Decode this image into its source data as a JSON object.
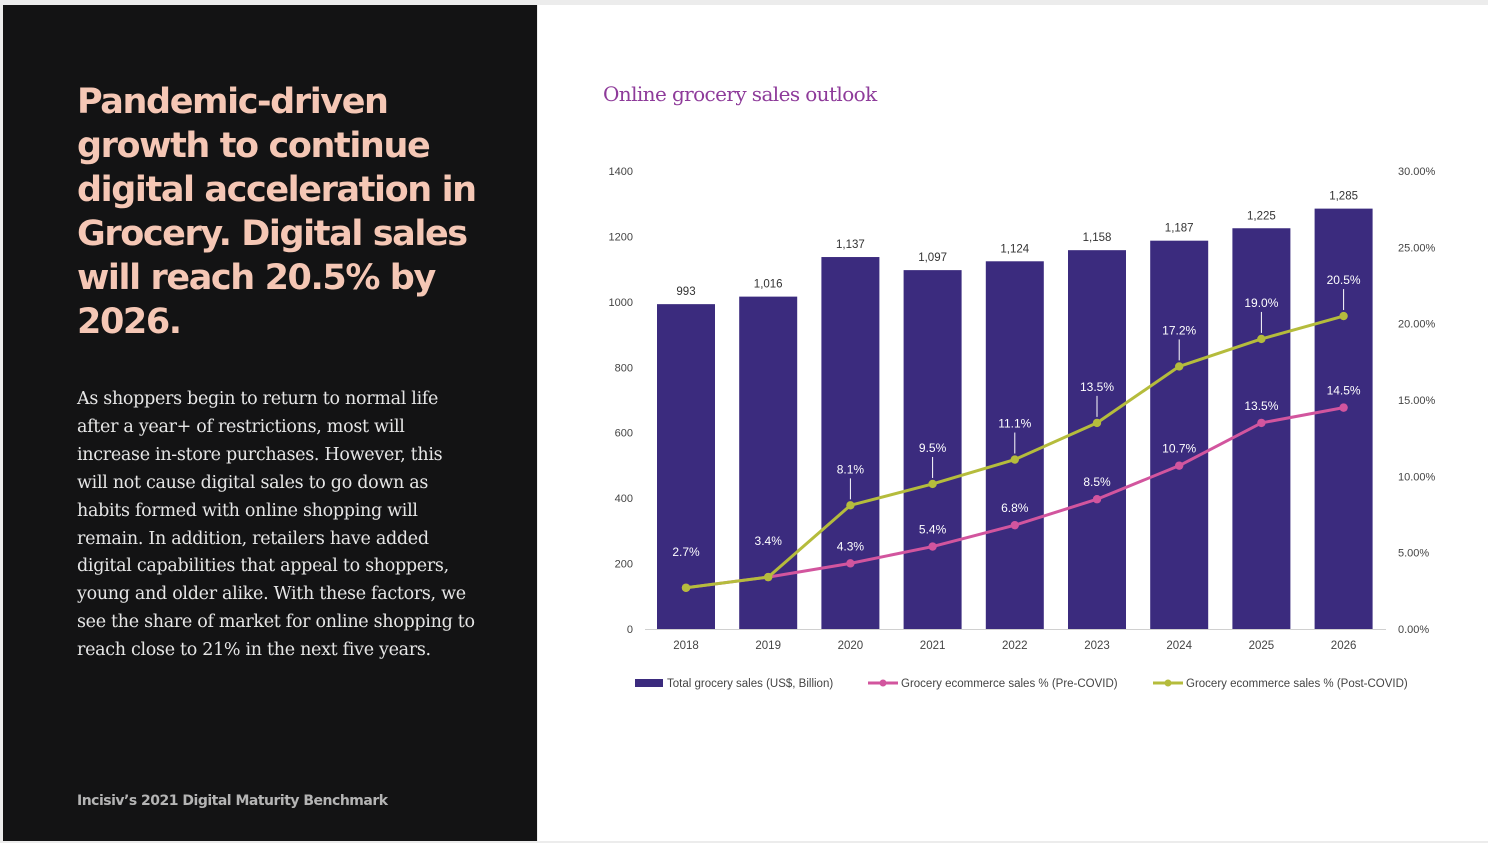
{
  "left": {
    "headline": "Pandemic-driven growth to continue digital acceleration in Grocery. Digital sales will reach 20.5% by 2026.",
    "body": "As shoppers begin to return to normal life after a year+ of restrictions, most will increase in-store purchases. However, this will not cause digital sales to go down as habits formed with online shopping will remain. In addition, retailers have added digital capabilities that appeal to shoppers, young and older alike. With these factors, we see the share of market for online shopping to reach close to 21% in the next five years.",
    "source": "Incisiv’s 2021 Digital Maturity Benchmark"
  },
  "colors": {
    "left_bg": "#131314",
    "headline": "#f5c7b5",
    "bar": "#3b2b7e",
    "pre_covid": "#d2559e",
    "post_covid": "#b5bc3c",
    "chart_title": "#8e3b9a"
  },
  "chart_data": {
    "type": "bar+line",
    "title": "Online grocery sales outlook",
    "categories": [
      "2018",
      "2019",
      "2020",
      "2021",
      "2022",
      "2023",
      "2024",
      "2025",
      "2026"
    ],
    "bar_series": {
      "name": "Total grocery sales (US$, Billion)",
      "values": [
        993,
        1016,
        1137,
        1097,
        1124,
        1158,
        1187,
        1225,
        1285
      ],
      "labels": [
        "993",
        "1,016",
        "1,137",
        "1,097",
        "1,124",
        "1,158",
        "1,187",
        "1,225",
        "1,285"
      ]
    },
    "line_series": [
      {
        "name": "Grocery ecommerce sales % (Pre-COVID)",
        "values": [
          2.7,
          3.4,
          4.3,
          5.4,
          6.8,
          8.5,
          10.7,
          13.5,
          14.5
        ],
        "labels": [
          "",
          "",
          "4.3%",
          "5.4%",
          "6.8%",
          "8.5%",
          "10.7%",
          "13.5%",
          "14.5%"
        ]
      },
      {
        "name": "Grocery ecommerce sales % (Post-COVID)",
        "values": [
          2.7,
          3.4,
          8.1,
          9.5,
          11.1,
          13.5,
          17.2,
          19.0,
          20.5
        ],
        "labels": [
          "2.7%",
          "3.4%",
          "8.1%",
          "9.5%",
          "11.1%",
          "13.5%",
          "17.2%",
          "19.0%",
          "20.5%"
        ]
      }
    ],
    "y_left": {
      "min": 0,
      "max": 1400,
      "ticks": [
        "0",
        "200",
        "400",
        "600",
        "800",
        "1000",
        "1200",
        "1400"
      ]
    },
    "y_right": {
      "min": 0,
      "max": 30,
      "ticks": [
        "0.00%",
        "5.00%",
        "10.00%",
        "15.00%",
        "20.00%",
        "25.00%",
        "30.00%"
      ]
    },
    "legend_position": "bottom"
  }
}
